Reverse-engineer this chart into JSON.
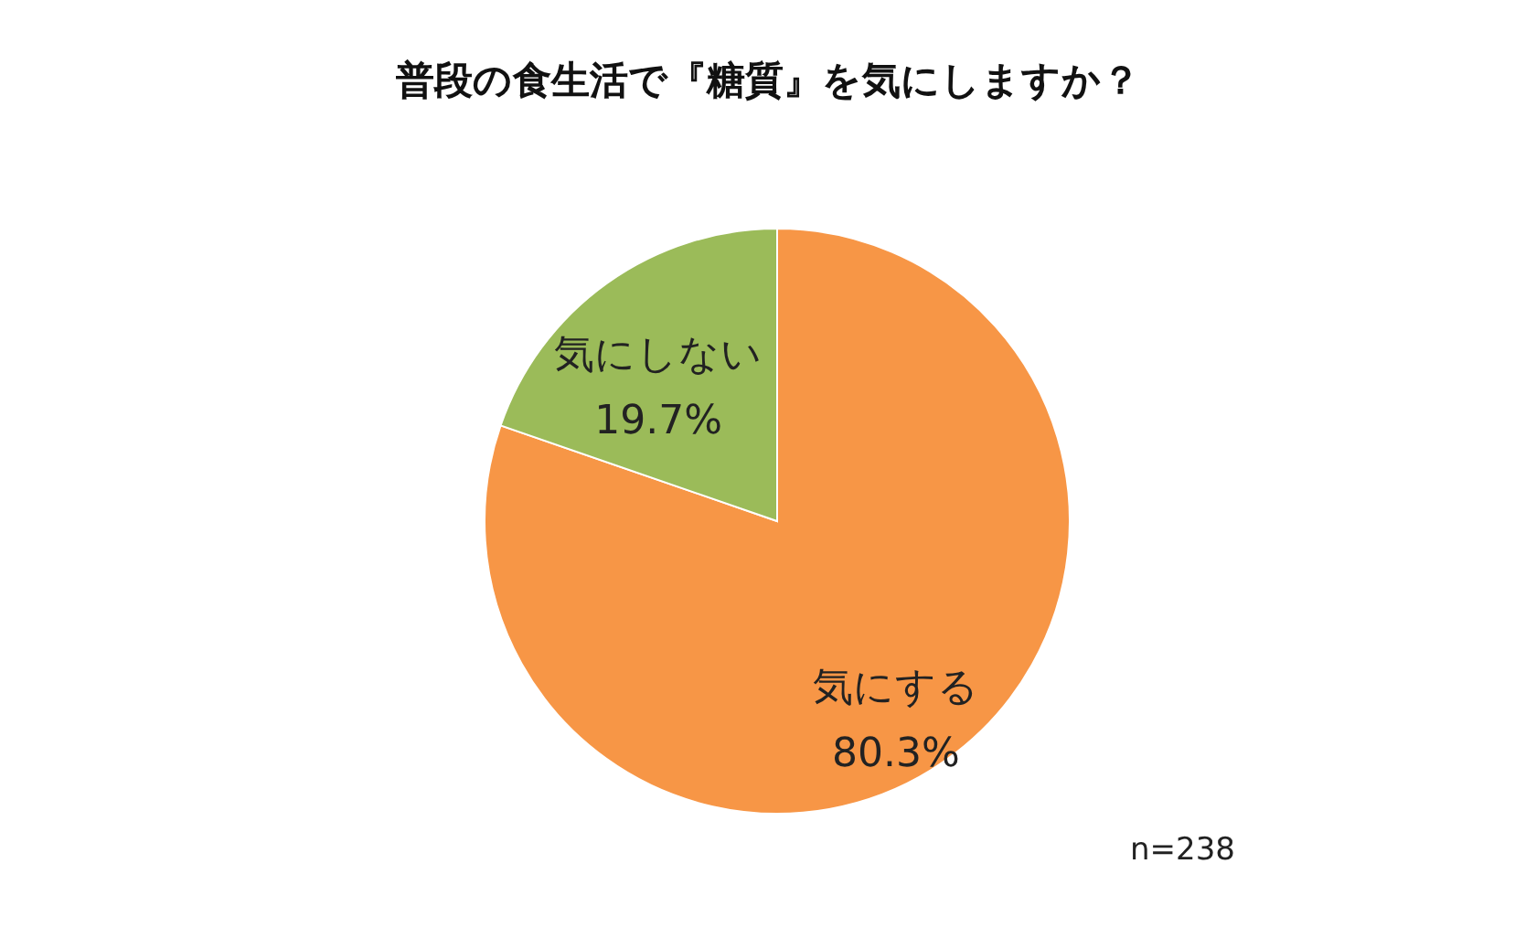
{
  "chart_data": {
    "type": "pie",
    "title": "普段の食生活で『糖質』を気にしますか？",
    "categories": [
      "気にする",
      "気にしない"
    ],
    "values": [
      80.3,
      19.7
    ],
    "colors": [
      "#f79646",
      "#9bbb59"
    ],
    "value_labels": [
      "80.3%",
      "19.7%"
    ],
    "annotations": [
      "n=238"
    ]
  }
}
